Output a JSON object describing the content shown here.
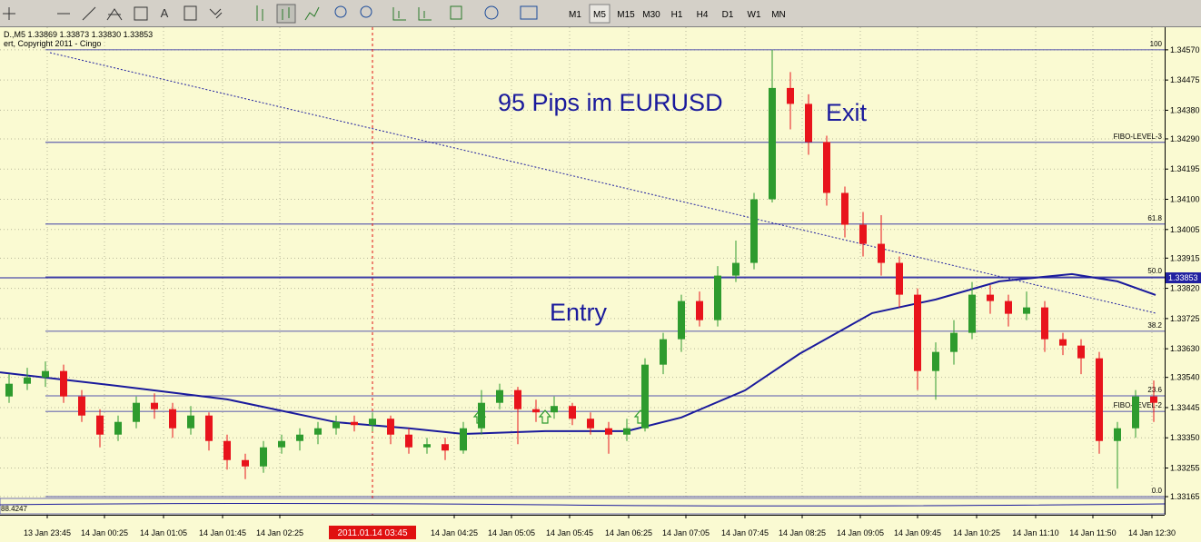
{
  "toolbar": {
    "text_tool": "A",
    "timeframes": [
      "M1",
      "M5",
      "M15",
      "M30",
      "H1",
      "H4",
      "D1",
      "W1",
      "MN"
    ],
    "active_timeframe": "M5"
  },
  "chart": {
    "info": "D.,M5  1.33869 1.33873 1.33830 1.33853",
    "copyright": "ert, Copyright 2011 - Cingo",
    "annotations": [
      "95 Pips im EURUSD",
      "Exit",
      "Entry"
    ],
    "ylim": [
      1.33108,
      1.34641
    ],
    "yticks": [
      {
        "value": 1.3457,
        "label": "1.34570"
      },
      {
        "value": 1.34475,
        "label": "1.34475"
      },
      {
        "value": 1.3438,
        "label": "1.34380"
      },
      {
        "value": 1.3429,
        "label": "1.34290"
      },
      {
        "value": 1.34195,
        "label": "1.34195"
      },
      {
        "value": 1.341,
        "label": "1.34100"
      },
      {
        "value": 1.34005,
        "label": "1.34005"
      },
      {
        "value": 1.33915,
        "label": "1.33915"
      },
      {
        "value": 1.3382,
        "label": "1.33820"
      },
      {
        "value": 1.33725,
        "label": "1.33725"
      },
      {
        "value": 1.3363,
        "label": "1.33630"
      },
      {
        "value": 1.3354,
        "label": "1.33540"
      },
      {
        "value": 1.33445,
        "label": "1.33445"
      },
      {
        "value": 1.3335,
        "label": "1.33350"
      },
      {
        "value": 1.33255,
        "label": "1.33255"
      },
      {
        "value": 1.33165,
        "label": "1.33165"
      }
    ],
    "current_price": {
      "value": 1.33853,
      "label": "1.33853"
    },
    "fib_levels": [
      {
        "price": 1.3457,
        "label": "100"
      },
      {
        "price": 1.34279,
        "label": "FIBO-LEVEL-3"
      },
      {
        "price": 1.34022,
        "label": "61.8"
      },
      {
        "price": 1.33856,
        "label": "50.0"
      },
      {
        "price": 1.33685,
        "label": "38.2"
      },
      {
        "price": 1.33482,
        "label": "23.6"
      },
      {
        "price": 1.33433,
        "label": "FIBO-LEVEL-2"
      },
      {
        "price": 1.33165,
        "label": "0.0"
      }
    ],
    "candles": [
      [
        1.3348,
        1.3355,
        1.3346,
        1.3352
      ],
      [
        1.3352,
        1.3357,
        1.335,
        1.3354
      ],
      [
        1.3354,
        1.3359,
        1.3351,
        1.3356
      ],
      [
        1.3356,
        1.3358,
        1.3346,
        1.3348
      ],
      [
        1.3348,
        1.335,
        1.334,
        1.3342
      ],
      [
        1.3342,
        1.3344,
        1.3332,
        1.3336
      ],
      [
        1.3336,
        1.3342,
        1.3334,
        1.334
      ],
      [
        1.334,
        1.3348,
        1.3338,
        1.3346
      ],
      [
        1.3346,
        1.3349,
        1.3341,
        1.3344
      ],
      [
        1.3344,
        1.3346,
        1.3335,
        1.3338
      ],
      [
        1.3338,
        1.3345,
        1.3336,
        1.3342
      ],
      [
        1.3342,
        1.3343,
        1.3331,
        1.3334
      ],
      [
        1.3334,
        1.3336,
        1.3325,
        1.3328
      ],
      [
        1.3328,
        1.333,
        1.3322,
        1.3326
      ],
      [
        1.3326,
        1.3334,
        1.3324,
        1.3332
      ],
      [
        1.3332,
        1.3336,
        1.333,
        1.3334
      ],
      [
        1.3334,
        1.3338,
        1.3331,
        1.3336
      ],
      [
        1.3336,
        1.334,
        1.3333,
        1.3338
      ],
      [
        1.3338,
        1.3342,
        1.3336,
        1.334
      ],
      [
        1.334,
        1.3342,
        1.3337,
        1.3339
      ],
      [
        1.3339,
        1.3343,
        1.3337,
        1.3341
      ],
      [
        1.3341,
        1.3342,
        1.3333,
        1.3336
      ],
      [
        1.3336,
        1.3338,
        1.333,
        1.3332
      ],
      [
        1.3332,
        1.3335,
        1.333,
        1.3333
      ],
      [
        1.3333,
        1.3335,
        1.3328,
        1.3331
      ],
      [
        1.3331,
        1.334,
        1.333,
        1.3338
      ],
      [
        1.3338,
        1.335,
        1.3336,
        1.3346
      ],
      [
        1.3346,
        1.3352,
        1.3344,
        1.335
      ],
      [
        1.335,
        1.3351,
        1.3333,
        1.3344
      ],
      [
        1.3344,
        1.3347,
        1.334,
        1.3343
      ],
      [
        1.3343,
        1.3348,
        1.3341,
        1.3345
      ],
      [
        1.3345,
        1.3346,
        1.3339,
        1.3341
      ],
      [
        1.3341,
        1.3343,
        1.3336,
        1.3338
      ],
      [
        1.3338,
        1.334,
        1.333,
        1.3336
      ],
      [
        1.3336,
        1.3341,
        1.3334,
        1.3338
      ],
      [
        1.3338,
        1.336,
        1.3337,
        1.3358
      ],
      [
        1.3358,
        1.3368,
        1.3355,
        1.3366
      ],
      [
        1.3366,
        1.338,
        1.3362,
        1.3378
      ],
      [
        1.3378,
        1.3381,
        1.337,
        1.3372
      ],
      [
        1.3372,
        1.3389,
        1.337,
        1.3386
      ],
      [
        1.3386,
        1.3397,
        1.3384,
        1.339
      ],
      [
        1.339,
        1.3412,
        1.3388,
        1.341
      ],
      [
        1.341,
        1.3457,
        1.3409,
        1.3445
      ],
      [
        1.3445,
        1.345,
        1.3432,
        1.344
      ],
      [
        1.344,
        1.3443,
        1.3424,
        1.3428
      ],
      [
        1.3428,
        1.343,
        1.3408,
        1.3412
      ],
      [
        1.3412,
        1.3414,
        1.3398,
        1.3402
      ],
      [
        1.3402,
        1.3406,
        1.3392,
        1.3396
      ],
      [
        1.3396,
        1.3405,
        1.3386,
        1.339
      ],
      [
        1.339,
        1.3392,
        1.3376,
        1.338
      ],
      [
        1.338,
        1.3382,
        1.335,
        1.3356
      ],
      [
        1.3356,
        1.3365,
        1.3347,
        1.3362
      ],
      [
        1.3362,
        1.3372,
        1.3358,
        1.3368
      ],
      [
        1.3368,
        1.3384,
        1.3366,
        1.338
      ],
      [
        1.338,
        1.3383,
        1.3374,
        1.3378
      ],
      [
        1.3378,
        1.338,
        1.337,
        1.3374
      ],
      [
        1.3374,
        1.3381,
        1.3372,
        1.3376
      ],
      [
        1.3376,
        1.3378,
        1.3362,
        1.3366
      ],
      [
        1.3366,
        1.3368,
        1.3361,
        1.3364
      ],
      [
        1.3364,
        1.3366,
        1.3355,
        1.336
      ],
      [
        1.336,
        1.3362,
        1.333,
        1.3334
      ],
      [
        1.3334,
        1.334,
        1.3319,
        1.3338
      ],
      [
        1.3338,
        1.335,
        1.3335,
        1.3348
      ],
      [
        1.3348,
        1.3353,
        1.334,
        1.3346
      ]
    ],
    "ma": {
      "index": [
        -0.5,
        6,
        12,
        18,
        22,
        25,
        29.5,
        34,
        37,
        40.5,
        43.5,
        47.5,
        51,
        54.5,
        58.5,
        61,
        63.1
      ],
      "values": [
        1.33556,
        1.33513,
        1.33471,
        1.33399,
        1.3338,
        1.33362,
        1.33371,
        1.33371,
        1.33414,
        1.33499,
        1.33614,
        1.33742,
        1.33785,
        1.33842,
        1.33865,
        1.33842,
        1.33799
      ]
    },
    "trendline": {
      "index": [
        2.25,
        63.1
      ],
      "values": [
        1.34561,
        1.33742
      ]
    },
    "cursor_index": 20,
    "cursor_label": "2011.01.14 03:45",
    "time_labels": [
      "13 Jan 23:45",
      "14 Jan 00:25",
      "14 Jan 01:05",
      "14 Jan 01:45",
      "14 Jan 02:25",
      "14 Jan 04:25",
      "14 Jan 05:05",
      "14 Jan 05:45",
      "14 Jan 06:25",
      "14 Jan 07:05",
      "14 Jan 07:45",
      "14 Jan 08:25",
      "14 Jan 09:05",
      "14 Jan 09:45",
      "14 Jan 10:25",
      "14 Jan 11:10",
      "14 Jan 11:50",
      "14 Jan 12:30"
    ],
    "indicator_label": "88.4247",
    "bull_color": "#2e9b2e",
    "bear_color": "#e8141c",
    "ma_color": "#1a1a9c",
    "fib_color": "#2020a0",
    "background": "#fafad2"
  }
}
